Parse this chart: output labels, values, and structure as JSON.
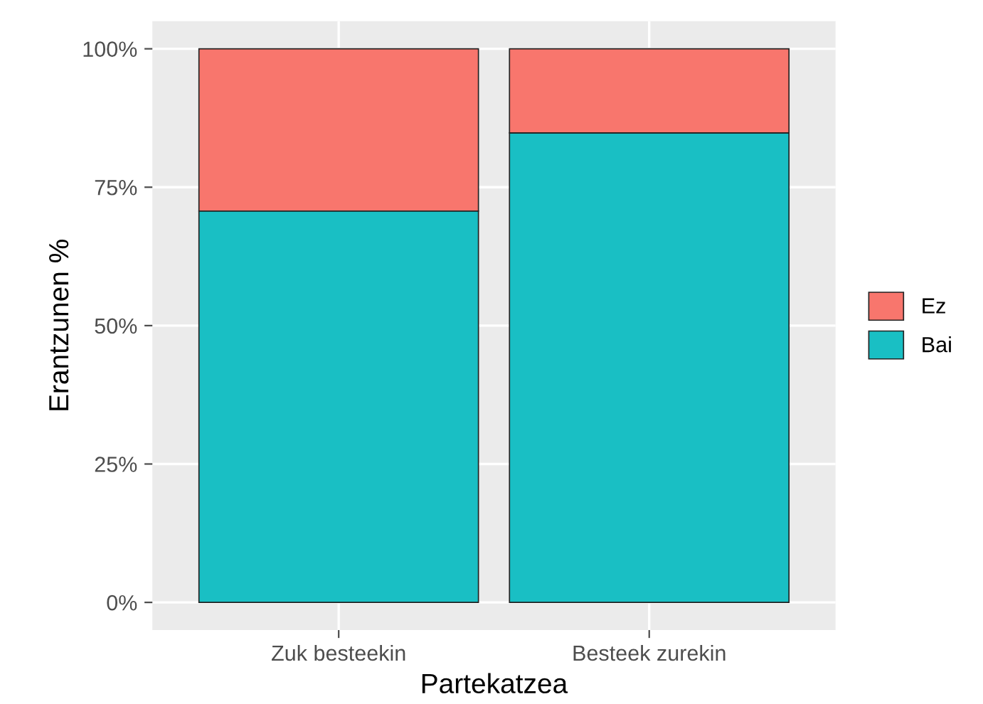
{
  "chart_data": {
    "type": "bar",
    "stacked": true,
    "xlabel": "Partekatzea",
    "ylabel": "Erantzunen %",
    "categories": [
      "Zuk besteekin",
      "Besteek zurekin"
    ],
    "series": [
      {
        "name": "Bai",
        "color": "#19bfc4",
        "values": [
          70.7,
          84.8
        ]
      },
      {
        "name": "Ez",
        "color": "#f8766d",
        "values": [
          29.3,
          15.2
        ]
      }
    ],
    "ylim": [
      -5,
      105
    ],
    "yticks": [
      {
        "value": 0,
        "label": "0%"
      },
      {
        "value": 25,
        "label": "25%"
      },
      {
        "value": 50,
        "label": "50%"
      },
      {
        "value": 75,
        "label": "75%"
      },
      {
        "value": 100,
        "label": "100%"
      }
    ],
    "grid": true,
    "legend": "right"
  }
}
